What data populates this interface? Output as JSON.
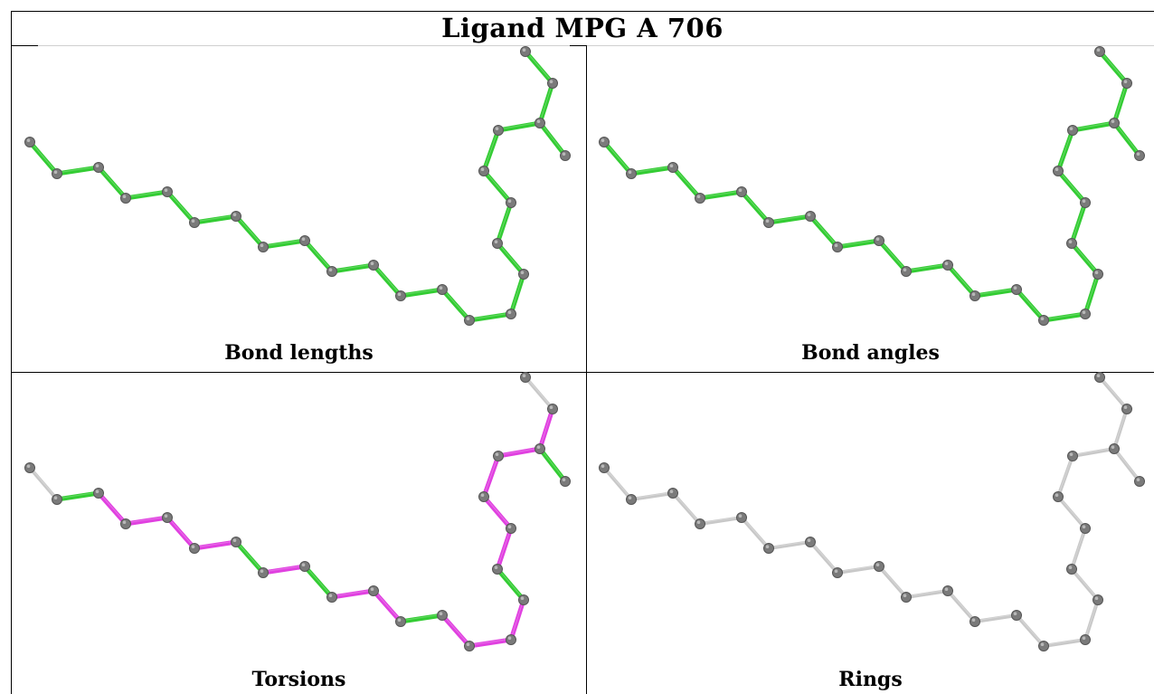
{
  "title": "Ligand MPG A 706",
  "colors": {
    "ok": "#33cc33",
    "outlier": "#e040e0",
    "neutral": "#c8c8c8",
    "atom": "#7a7a7a"
  },
  "panels": [
    {
      "label": "Bond lengths",
      "bonds": [
        "ok",
        "ok",
        "ok",
        "ok",
        "ok",
        "ok",
        "ok",
        "ok",
        "ok",
        "ok",
        "ok",
        "ok",
        "ok",
        "ok",
        "ok",
        "ok",
        "ok",
        "ok",
        "ok",
        "ok",
        "ok",
        "ok",
        "ok",
        "ok"
      ]
    },
    {
      "label": "Bond angles",
      "bonds": [
        "ok",
        "ok",
        "ok",
        "ok",
        "ok",
        "ok",
        "ok",
        "ok",
        "ok",
        "ok",
        "ok",
        "ok",
        "ok",
        "ok",
        "ok",
        "ok",
        "ok",
        "ok",
        "ok",
        "ok",
        "ok",
        "ok",
        "ok",
        "ok"
      ]
    },
    {
      "label": "Torsions",
      "bonds": [
        "neutral",
        "ok",
        "outlier",
        "outlier",
        "outlier",
        "outlier",
        "ok",
        "outlier",
        "ok",
        "outlier",
        "outlier",
        "ok",
        "outlier",
        "outlier",
        "outlier",
        "ok",
        "outlier",
        "outlier",
        "outlier",
        "outlier",
        "ok",
        "outlier",
        "neutral",
        "neutral"
      ]
    },
    {
      "label": "Rings",
      "bonds": [
        "neutral",
        "neutral",
        "neutral",
        "neutral",
        "neutral",
        "neutral",
        "neutral",
        "neutral",
        "neutral",
        "neutral",
        "neutral",
        "neutral",
        "neutral",
        "neutral",
        "neutral",
        "neutral",
        "neutral",
        "neutral",
        "neutral",
        "neutral",
        "neutral",
        "neutral",
        "neutral",
        "neutral"
      ]
    }
  ]
}
